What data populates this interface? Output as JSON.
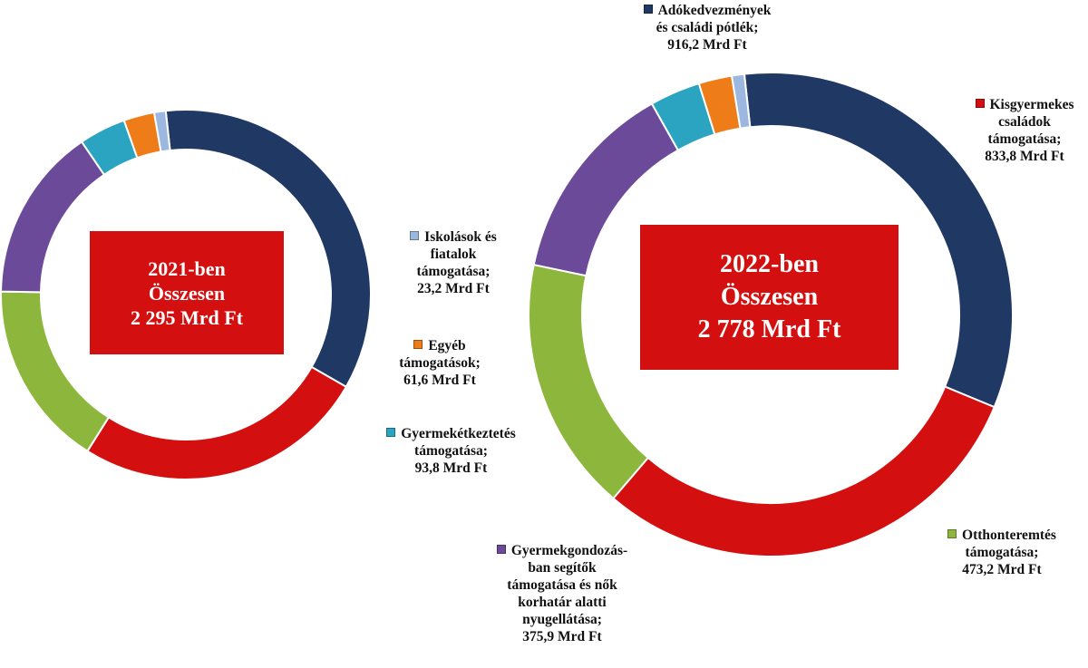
{
  "chart_data": [
    {
      "type": "donut",
      "center_label": [
        "2021-ben",
        "Összesen",
        "2 295 Mrd Ft"
      ],
      "total": 2295,
      "series": [
        {
          "name": "Adókedvezmények és családi pótlék",
          "value": 804.5,
          "color": "#1f3864"
        },
        {
          "name": "Kisgyermekes családok támogatása",
          "value": 587.9,
          "color": "#d40f0f"
        },
        {
          "name": "Otthonteremtés támogatása",
          "value": 374.8,
          "color": "#8db63c"
        },
        {
          "name": "Gyermekgondozásban segítők támogatása és nők korhatár alatti nyugellátása",
          "value": 349.2,
          "color": "#6c4a9a"
        },
        {
          "name": "Gyermekétkeztetés támogatása",
          "value": 93.8,
          "color": "#2aa4c0"
        },
        {
          "name": "Egyéb támogatások",
          "value": 61.6,
          "color": "#ee7d19"
        },
        {
          "name": "Iskolások és fiatalok támogatása",
          "value": 23.2,
          "color": "#9cb8e0"
        }
      ]
    },
    {
      "type": "donut",
      "center_label": [
        "2022-ben",
        "Összesen",
        "2 778 Mrd Ft"
      ],
      "total": 2778,
      "series": [
        {
          "name": "Adókedvezmények és családi pótlék",
          "value": 916.2,
          "color": "#1f3864"
        },
        {
          "name": "Kisgyermekes családok támogatása",
          "value": 833.8,
          "color": "#d40f0f"
        },
        {
          "name": "Otthonteremtés támogatása",
          "value": 473.2,
          "color": "#8db63c"
        },
        {
          "name": "Gyermekgondozásban segítők támogatása és nők korhatár alatti nyugellátása",
          "value": 375.9,
          "color": "#6c4a9a"
        },
        {
          "name": "Gyermekétkeztetés támogatása",
          "value": 93.8,
          "color": "#2aa4c0"
        },
        {
          "name": "Egyéb támogatások",
          "value": 61.6,
          "color": "#ee7d19"
        },
        {
          "name": "Iskolások és fiatalok támogatása",
          "value": 23.2,
          "color": "#9cb8e0"
        }
      ]
    }
  ],
  "labels": {
    "ado": {
      "lines": [
        "Adókedvezmények",
        "és családi pótlék;",
        "916,2 Mrd Ft"
      ],
      "color": "#1f3864"
    },
    "kisgy": {
      "lines": [
        "Kisgyermekes",
        "családok",
        "támogatása;",
        "833,8 Mrd Ft"
      ],
      "color": "#d40f0f"
    },
    "otthon": {
      "lines": [
        "Otthonteremtés",
        "támogatása;",
        "473,2 Mrd Ft"
      ],
      "color": "#8db63c"
    },
    "gyermekgond": {
      "lines": [
        "Gyermekgondozás-",
        "ban segítők",
        "támogatása és nők",
        "korhatár alatti",
        "nyugellátása;",
        "375,9 Mrd Ft"
      ],
      "color": "#6c4a9a"
    },
    "etkeztetes": {
      "lines": [
        "Gyermekétkeztetés",
        "támogatása;",
        "93,8 Mrd Ft"
      ],
      "color": "#2aa4c0"
    },
    "egyeb": {
      "lines": [
        "Egyéb",
        "támogatások;",
        "61,6 Mrd Ft"
      ],
      "color": "#ee7d19"
    },
    "iskolas": {
      "lines": [
        "Iskolások és",
        "fiatalok",
        "támogatása;",
        "23,2 Mrd Ft"
      ],
      "color": "#9cb8e0"
    }
  }
}
